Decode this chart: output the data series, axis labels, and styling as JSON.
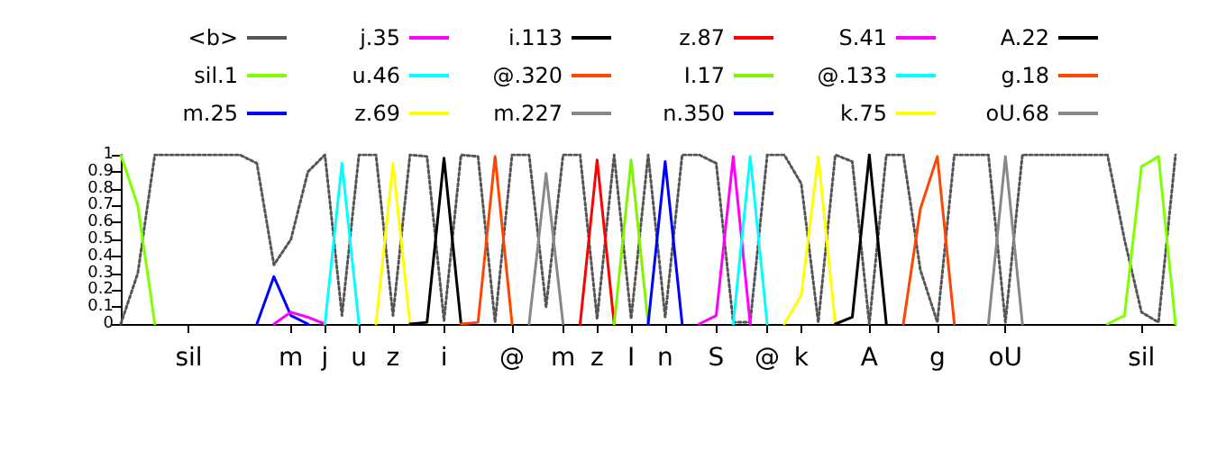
{
  "chart_data": {
    "type": "line",
    "legend": "top",
    "marker": "none",
    "line_style": "solid",
    "ylim": [
      0,
      1
    ],
    "yticks": [
      0,
      0.1,
      0.2,
      0.3,
      0.4,
      0.5,
      0.6,
      0.7,
      0.8,
      0.9,
      1
    ],
    "categories": [
      null,
      null,
      null,
      null,
      "sil",
      null,
      null,
      null,
      null,
      null,
      "m",
      null,
      "j",
      null,
      "u",
      null,
      "z",
      null,
      null,
      "i",
      null,
      null,
      null,
      "@",
      null,
      null,
      "m",
      null,
      "z",
      null,
      "I",
      null,
      "n",
      null,
      null,
      "S",
      null,
      null,
      "@",
      null,
      "k",
      null,
      null,
      null,
      "A",
      null,
      null,
      null,
      "g",
      null,
      null,
      null,
      "oU",
      null,
      null,
      null,
      null,
      null,
      null,
      null,
      "sil",
      null,
      null
    ],
    "series": [
      {
        "name": "<b>",
        "color": "#555555",
        "line_style": "dotted",
        "values": [
          0,
          0.3,
          1,
          1,
          1,
          1,
          1,
          1,
          0.95,
          0.35,
          0.5,
          0.9,
          1,
          0.05,
          1,
          1,
          0.05,
          1,
          0.99,
          0.02,
          1,
          0.99,
          0.01,
          1,
          1,
          0.1,
          1,
          1,
          0.03,
          1,
          0.03,
          1,
          0.04,
          1,
          1,
          0.95,
          0.01,
          0.01,
          1,
          1,
          0.83,
          0.01,
          1,
          0.96,
          0,
          1,
          1,
          0.32,
          0.01,
          1,
          1,
          1,
          0.01,
          1,
          1,
          1,
          1,
          1,
          1,
          0.5,
          0.07,
          0.01,
          1
        ]
      },
      {
        "name": "sil.1",
        "color": "#80ff00",
        "values": [
          1,
          0.7,
          0,
          null,
          null,
          null,
          null,
          null,
          null,
          null,
          null,
          null,
          null,
          null,
          null,
          null,
          null,
          null,
          null,
          null,
          null,
          null,
          null,
          null,
          null,
          null,
          null,
          null,
          null,
          null,
          null,
          null,
          null,
          null,
          null,
          null,
          null,
          null,
          null,
          null,
          null,
          null,
          null,
          null,
          null,
          null,
          null,
          null,
          null,
          null,
          null,
          null,
          null,
          null,
          null,
          null,
          null,
          null,
          0,
          0.05,
          0.93,
          0.99,
          0
        ]
      },
      {
        "name": "m.25",
        "color": "#0000ff",
        "values": [
          null,
          null,
          null,
          null,
          null,
          null,
          null,
          null,
          0,
          0.28,
          0.05,
          0,
          null,
          null,
          null,
          null,
          null,
          null,
          null,
          null,
          null,
          null,
          null,
          null,
          null,
          null,
          null,
          null,
          null,
          null,
          null,
          null,
          null,
          null,
          null,
          null,
          null,
          null,
          null,
          null,
          null,
          null,
          null,
          null,
          null,
          null,
          null,
          null,
          null,
          null,
          null,
          null,
          null,
          null,
          null,
          null,
          null,
          null,
          null,
          null,
          null,
          null,
          null
        ]
      },
      {
        "name": "j.35",
        "color": "#ff00ff",
        "values": [
          null,
          null,
          null,
          null,
          null,
          null,
          null,
          null,
          null,
          0,
          0.07,
          0.04,
          0,
          null,
          null,
          null,
          null,
          null,
          null,
          null,
          null,
          null,
          null,
          null,
          null,
          null,
          null,
          null,
          null,
          null,
          null,
          null,
          null,
          null,
          null,
          null,
          null,
          null,
          null,
          null,
          null,
          null,
          null,
          null,
          null,
          null,
          null,
          null,
          null,
          null,
          null,
          null,
          null,
          null,
          null,
          null,
          null,
          null,
          null,
          null,
          null,
          null,
          null
        ]
      },
      {
        "name": "u.46",
        "color": "#00ffff",
        "values": [
          null,
          null,
          null,
          null,
          null,
          null,
          null,
          null,
          null,
          null,
          null,
          null,
          0,
          0.95,
          0,
          null,
          null,
          null,
          null,
          null,
          null,
          null,
          null,
          null,
          null,
          null,
          null,
          null,
          null,
          null,
          null,
          null,
          null,
          null,
          null,
          null,
          null,
          null,
          null,
          null,
          null,
          null,
          null,
          null,
          null,
          null,
          null,
          null,
          null,
          null,
          null,
          null,
          null,
          null,
          null,
          null,
          null,
          null,
          null,
          null,
          null,
          null,
          null
        ]
      },
      {
        "name": "z.69",
        "color": "#ffff00",
        "values": [
          null,
          null,
          null,
          null,
          null,
          null,
          null,
          null,
          null,
          null,
          null,
          null,
          null,
          null,
          null,
          0,
          0.95,
          0,
          null,
          null,
          null,
          null,
          null,
          null,
          null,
          null,
          null,
          null,
          null,
          null,
          null,
          null,
          null,
          null,
          null,
          null,
          null,
          null,
          null,
          null,
          null,
          null,
          null,
          null,
          null,
          null,
          null,
          null,
          null,
          null,
          null,
          null,
          null,
          null,
          null,
          null,
          null,
          null,
          null,
          null,
          null,
          null,
          null
        ]
      },
      {
        "name": "i.113",
        "color": "#000000",
        "values": [
          null,
          null,
          null,
          null,
          null,
          null,
          null,
          null,
          null,
          null,
          null,
          null,
          null,
          null,
          null,
          null,
          null,
          0,
          0.01,
          0.98,
          0,
          null,
          null,
          null,
          null,
          null,
          null,
          null,
          null,
          null,
          null,
          null,
          null,
          null,
          null,
          null,
          null,
          null,
          null,
          null,
          null,
          null,
          null,
          null,
          null,
          null,
          null,
          null,
          null,
          null,
          null,
          null,
          null,
          null,
          null,
          null,
          null,
          null,
          null,
          null,
          null,
          null,
          null
        ]
      },
      {
        "name": "@.320",
        "color": "#ff4500",
        "values": [
          null,
          null,
          null,
          null,
          null,
          null,
          null,
          null,
          null,
          null,
          null,
          null,
          null,
          null,
          null,
          null,
          null,
          null,
          null,
          null,
          0,
          0.01,
          0.99,
          0,
          null,
          null,
          null,
          null,
          null,
          null,
          null,
          null,
          null,
          null,
          null,
          null,
          null,
          null,
          null,
          null,
          null,
          null,
          null,
          null,
          null,
          null,
          null,
          null,
          null,
          null,
          null,
          null,
          null,
          null,
          null,
          null,
          null,
          null,
          null,
          null,
          null,
          null,
          null
        ]
      },
      {
        "name": "m.227",
        "color": "#888888",
        "values": [
          null,
          null,
          null,
          null,
          null,
          null,
          null,
          null,
          null,
          null,
          null,
          null,
          null,
          null,
          null,
          null,
          null,
          null,
          null,
          null,
          null,
          null,
          null,
          null,
          0,
          0.89,
          0,
          null,
          null,
          null,
          null,
          null,
          null,
          null,
          null,
          null,
          null,
          null,
          null,
          null,
          null,
          null,
          null,
          null,
          null,
          null,
          null,
          null,
          null,
          null,
          null,
          null,
          null,
          null,
          null,
          null,
          null,
          null,
          null,
          null,
          null,
          null,
          null
        ]
      },
      {
        "name": "z.87",
        "color": "#ff0000",
        "values": [
          null,
          null,
          null,
          null,
          null,
          null,
          null,
          null,
          null,
          null,
          null,
          null,
          null,
          null,
          null,
          null,
          null,
          null,
          null,
          null,
          null,
          null,
          null,
          null,
          null,
          null,
          null,
          0,
          0.97,
          0,
          null,
          null,
          null,
          null,
          null,
          null,
          null,
          null,
          null,
          null,
          null,
          null,
          null,
          null,
          null,
          null,
          null,
          null,
          null,
          null,
          null,
          null,
          null,
          null,
          null,
          null,
          null,
          null,
          null,
          null,
          null,
          null,
          null
        ]
      },
      {
        "name": "I.17",
        "color": "#7ff500",
        "values": [
          null,
          null,
          null,
          null,
          null,
          null,
          null,
          null,
          null,
          null,
          null,
          null,
          null,
          null,
          null,
          null,
          null,
          null,
          null,
          null,
          null,
          null,
          null,
          null,
          null,
          null,
          null,
          null,
          null,
          0,
          0.97,
          0,
          null,
          null,
          null,
          null,
          null,
          null,
          null,
          null,
          null,
          null,
          null,
          null,
          null,
          null,
          null,
          null,
          null,
          null,
          null,
          null,
          null,
          null,
          null,
          null,
          null,
          null,
          null,
          null,
          null,
          null,
          null
        ]
      },
      {
        "name": "n.350",
        "color": "#0000ff",
        "values": [
          null,
          null,
          null,
          null,
          null,
          null,
          null,
          null,
          null,
          null,
          null,
          null,
          null,
          null,
          null,
          null,
          null,
          null,
          null,
          null,
          null,
          null,
          null,
          null,
          null,
          null,
          null,
          null,
          null,
          null,
          null,
          0,
          0.96,
          0,
          null,
          null,
          null,
          null,
          null,
          null,
          null,
          null,
          null,
          null,
          null,
          null,
          null,
          null,
          null,
          null,
          null,
          null,
          null,
          null,
          null,
          null,
          null,
          null,
          null,
          null,
          null,
          null,
          null
        ]
      },
      {
        "name": "S.41",
        "color": "#ff00ff",
        "values": [
          null,
          null,
          null,
          null,
          null,
          null,
          null,
          null,
          null,
          null,
          null,
          null,
          null,
          null,
          null,
          null,
          null,
          null,
          null,
          null,
          null,
          null,
          null,
          null,
          null,
          null,
          null,
          null,
          null,
          null,
          null,
          null,
          null,
          null,
          0,
          0.05,
          0.99,
          0,
          null,
          null,
          null,
          null,
          null,
          null,
          null,
          null,
          null,
          null,
          null,
          null,
          null,
          null,
          null,
          null,
          null,
          null,
          null,
          null,
          null,
          null,
          null,
          null,
          null
        ]
      },
      {
        "name": "@.133",
        "color": "#00ffff",
        "values": [
          null,
          null,
          null,
          null,
          null,
          null,
          null,
          null,
          null,
          null,
          null,
          null,
          null,
          null,
          null,
          null,
          null,
          null,
          null,
          null,
          null,
          null,
          null,
          null,
          null,
          null,
          null,
          null,
          null,
          null,
          null,
          null,
          null,
          null,
          null,
          null,
          0,
          0.99,
          0,
          null,
          null,
          null,
          null,
          null,
          null,
          null,
          null,
          null,
          null,
          null,
          null,
          null,
          null,
          null,
          null,
          null,
          null,
          null,
          null,
          null,
          null,
          null,
          null
        ]
      },
      {
        "name": "k.75",
        "color": "#ffff00",
        "values": [
          null,
          null,
          null,
          null,
          null,
          null,
          null,
          null,
          null,
          null,
          null,
          null,
          null,
          null,
          null,
          null,
          null,
          null,
          null,
          null,
          null,
          null,
          null,
          null,
          null,
          null,
          null,
          null,
          null,
          null,
          null,
          null,
          null,
          null,
          null,
          null,
          null,
          null,
          null,
          0,
          0.17,
          0.99,
          0,
          null,
          null,
          null,
          null,
          null,
          null,
          null,
          null,
          null,
          null,
          null,
          null,
          null,
          null,
          null,
          null,
          null,
          null,
          null,
          null
        ]
      },
      {
        "name": "A.22",
        "color": "#000000",
        "values": [
          null,
          null,
          null,
          null,
          null,
          null,
          null,
          null,
          null,
          null,
          null,
          null,
          null,
          null,
          null,
          null,
          null,
          null,
          null,
          null,
          null,
          null,
          null,
          null,
          null,
          null,
          null,
          null,
          null,
          null,
          null,
          null,
          null,
          null,
          null,
          null,
          null,
          null,
          null,
          null,
          null,
          null,
          0,
          0.04,
          1,
          0,
          null,
          null,
          null,
          null,
          null,
          null,
          null,
          null,
          null,
          null,
          null,
          null,
          null,
          null,
          null,
          null,
          null
        ]
      },
      {
        "name": "g.18",
        "color": "#ff4500",
        "values": [
          null,
          null,
          null,
          null,
          null,
          null,
          null,
          null,
          null,
          null,
          null,
          null,
          null,
          null,
          null,
          null,
          null,
          null,
          null,
          null,
          null,
          null,
          null,
          null,
          null,
          null,
          null,
          null,
          null,
          null,
          null,
          null,
          null,
          null,
          null,
          null,
          null,
          null,
          null,
          null,
          null,
          null,
          null,
          null,
          null,
          null,
          0,
          0.68,
          0.99,
          0,
          null,
          null,
          null,
          null,
          null,
          null,
          null,
          null,
          null,
          null,
          null,
          null,
          null
        ]
      },
      {
        "name": "oU.68",
        "color": "#888888",
        "values": [
          null,
          null,
          null,
          null,
          null,
          null,
          null,
          null,
          null,
          null,
          null,
          null,
          null,
          null,
          null,
          null,
          null,
          null,
          null,
          null,
          null,
          null,
          null,
          null,
          null,
          null,
          null,
          null,
          null,
          null,
          null,
          null,
          null,
          null,
          null,
          null,
          null,
          null,
          null,
          null,
          null,
          null,
          null,
          null,
          null,
          null,
          null,
          null,
          null,
          null,
          null,
          0,
          0.99,
          0,
          null,
          null,
          null,
          null,
          null,
          null,
          null,
          null,
          null
        ]
      }
    ]
  }
}
